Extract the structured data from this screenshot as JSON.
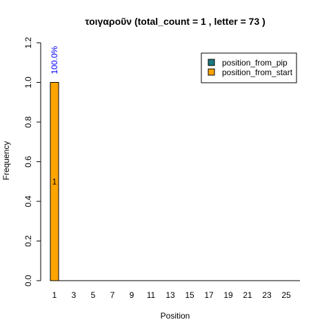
{
  "chart_data": {
    "type": "bar",
    "title": "τοιγαροῦν  (total_count =  1 , letter = 73 )",
    "xlabel": "Position",
    "ylabel": "Frequency",
    "ylim": [
      0,
      1.2
    ],
    "y_ticks": [
      "0.0",
      "0.2",
      "0.4",
      "0.6",
      "0.8",
      "1.0",
      "1.2"
    ],
    "x_positions": [
      1,
      2,
      3,
      4,
      5,
      6,
      7,
      8,
      9,
      10,
      11,
      12,
      13,
      14,
      15,
      16,
      17,
      18,
      19,
      20,
      21,
      22,
      23,
      24,
      25,
      26
    ],
    "x_tick_labels": [
      "1",
      "3",
      "5",
      "7",
      "9",
      "11",
      "13",
      "15",
      "17",
      "19",
      "21",
      "23",
      "25"
    ],
    "series": [
      {
        "name": "position_from_pip",
        "color": "#1a7a80",
        "values": [
          0,
          0,
          0,
          0,
          0,
          0,
          0,
          0,
          0,
          0,
          0,
          0,
          0,
          0,
          0,
          0,
          0,
          0,
          0,
          0,
          0,
          0,
          0,
          0,
          0,
          0
        ]
      },
      {
        "name": "position_from_start",
        "color": "#ffa500",
        "values": [
          1,
          0,
          0,
          0,
          0,
          0,
          0,
          0,
          0,
          0,
          0,
          0,
          0,
          0,
          0,
          0,
          0,
          0,
          0,
          0,
          0,
          0,
          0,
          0,
          0,
          0
        ]
      }
    ],
    "bar_labels": [
      {
        "position": 1,
        "count": "1",
        "percent": "100.0%"
      }
    ],
    "percent_label_color": "#0000ff",
    "legend_position": "top-right",
    "grid": false
  }
}
